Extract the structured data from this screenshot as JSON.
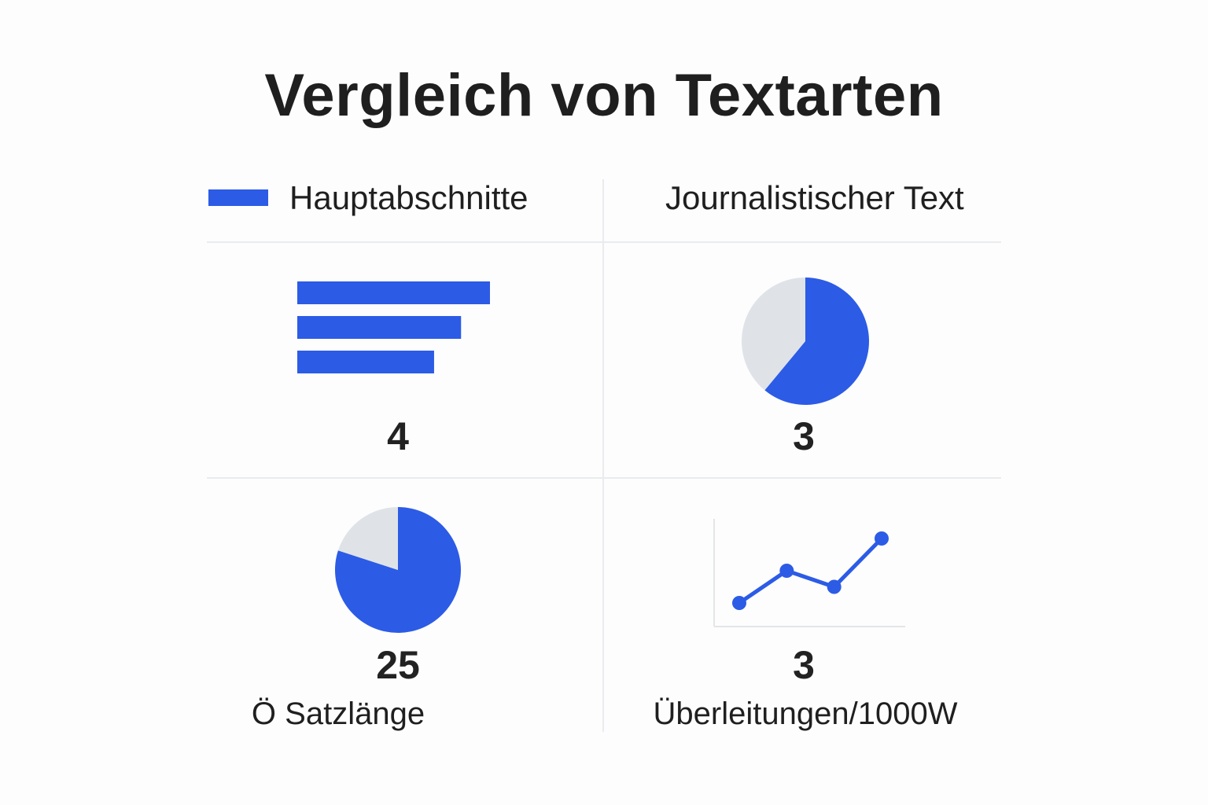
{
  "title": "Vergleich von Textarten",
  "colors": {
    "accent": "#2c5be6",
    "pie_rest": "#dfe3e8",
    "axis": "#e3e5e8"
  },
  "legend": {
    "label": "Hauptabschnitte"
  },
  "header_right": "Journalistischer Text",
  "panels": {
    "top_left": {
      "value": "4"
    },
    "top_right": {
      "value": "3"
    },
    "bottom_left": {
      "value": "25",
      "label": "Ö Satzlänge"
    },
    "bottom_right": {
      "value": "3",
      "label": "Überleitungen/1000W"
    }
  },
  "chart_data": [
    {
      "type": "bar",
      "orientation": "horizontal",
      "values": [
        1.0,
        0.85,
        0.71
      ],
      "value_label": "4"
    },
    {
      "type": "pie",
      "slices": [
        0.61,
        0.39
      ],
      "value_label": "3"
    },
    {
      "type": "pie",
      "slices": [
        0.8,
        0.2
      ],
      "value_label": "25",
      "label": "Ö Satzlänge"
    },
    {
      "type": "line",
      "x": [
        1,
        2,
        3,
        4
      ],
      "y": [
        1,
        2,
        1.5,
        3
      ],
      "value_label": "3",
      "label": "Überleitungen/1000W"
    }
  ]
}
